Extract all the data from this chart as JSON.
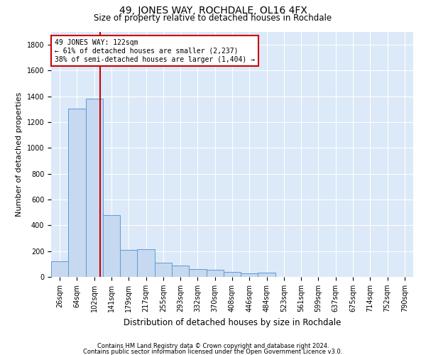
{
  "title": "49, JONES WAY, ROCHDALE, OL16 4FX",
  "subtitle": "Size of property relative to detached houses in Rochdale",
  "xlabel": "Distribution of detached houses by size in Rochdale",
  "ylabel": "Number of detached properties",
  "bar_color": "#c6d9f0",
  "bar_edge_color": "#5b9bd5",
  "background_color": "#dce9f8",
  "grid_color": "#ffffff",
  "categories": [
    "26sqm",
    "64sqm",
    "102sqm",
    "141sqm",
    "179sqm",
    "217sqm",
    "255sqm",
    "293sqm",
    "332sqm",
    "370sqm",
    "408sqm",
    "446sqm",
    "484sqm",
    "523sqm",
    "561sqm",
    "599sqm",
    "637sqm",
    "675sqm",
    "714sqm",
    "752sqm",
    "790sqm"
  ],
  "values": [
    120,
    1305,
    1380,
    480,
    210,
    215,
    108,
    90,
    58,
    55,
    38,
    30,
    32,
    0,
    0,
    0,
    0,
    0,
    0,
    0,
    0
  ],
  "ylim": [
    0,
    1900
  ],
  "yticks": [
    0,
    200,
    400,
    600,
    800,
    1000,
    1200,
    1400,
    1600,
    1800
  ],
  "property_line_x": 2.33,
  "annotation_text": "49 JONES WAY: 122sqm\n← 61% of detached houses are smaller (2,237)\n38% of semi-detached houses are larger (1,404) →",
  "annotation_box_color": "#ffffff",
  "annotation_box_edge": "#cc0000",
  "footer1": "Contains HM Land Registry data © Crown copyright and database right 2024.",
  "footer2": "Contains public sector information licensed under the Open Government Licence v3.0.",
  "title_fontsize": 10,
  "subtitle_fontsize": 8.5,
  "ylabel_fontsize": 8,
  "xlabel_fontsize": 8.5,
  "tick_fontsize": 7,
  "annot_fontsize": 7,
  "footer_fontsize": 6
}
